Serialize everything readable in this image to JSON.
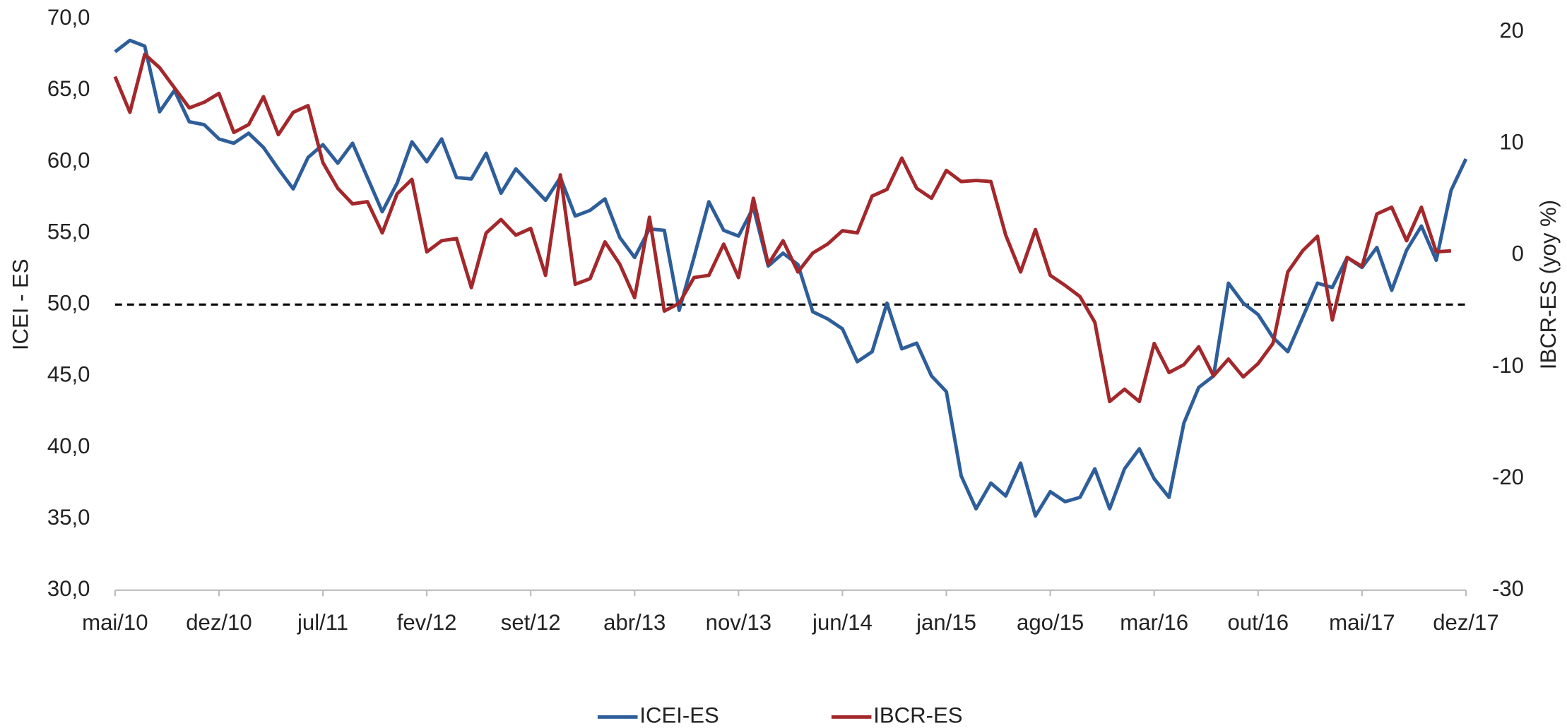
{
  "chart_data": {
    "type": "line",
    "categories": [
      "mai/10",
      null,
      null,
      null,
      null,
      null,
      null,
      "dez/10",
      null,
      null,
      null,
      null,
      null,
      null,
      "jul/11",
      null,
      null,
      null,
      null,
      null,
      null,
      "fev/12",
      null,
      null,
      null,
      null,
      null,
      null,
      "set/12",
      null,
      null,
      null,
      null,
      null,
      null,
      "abr/13",
      null,
      null,
      null,
      null,
      null,
      null,
      "nov/13",
      null,
      null,
      null,
      null,
      null,
      null,
      "jun/14",
      null,
      null,
      null,
      null,
      null,
      null,
      "jan/15",
      null,
      null,
      null,
      null,
      null,
      null,
      "ago/15",
      null,
      null,
      null,
      null,
      null,
      null,
      "mar/16",
      null,
      null,
      null,
      null,
      null,
      null,
      "out/16",
      null,
      null,
      null,
      null,
      null,
      null,
      "mai/17",
      null,
      null,
      null,
      null,
      null,
      null,
      "dez/17"
    ],
    "series": [
      {
        "name": "ICEI-ES",
        "color": "#2e5e9a",
        "values": [
          67.7,
          68.5,
          68.1,
          63.5,
          65,
          62.8,
          62.6,
          61.6,
          61.3,
          62,
          61,
          59.5,
          58.1,
          60.3,
          61.2,
          59.9,
          61.3,
          58.9,
          56.5,
          58.5,
          61.4,
          60,
          61.6,
          58.9,
          58.8,
          60.6,
          57.8,
          59.5,
          58.4,
          57.3,
          58.9,
          56.2,
          56.6,
          57.4,
          54.7,
          53.3,
          55.3,
          55.2,
          49.6,
          53.3,
          57.2,
          55.2,
          54.8,
          56.8,
          52.7,
          53.6,
          52.8,
          49.5,
          49,
          48.3,
          46,
          46.7,
          50.1,
          46.9,
          47.3,
          45,
          43.9,
          38,
          35.7,
          37.5,
          36.6,
          38.9,
          35.2,
          36.9,
          36.2,
          36.5,
          38.5,
          35.7,
          38.5,
          39.9,
          37.8,
          36.5,
          41.7,
          44.2,
          45,
          51.5,
          50.1,
          49.3,
          47.7,
          46.7,
          49.1,
          51.5,
          51.2,
          53.3,
          52.6,
          54,
          51,
          53.8,
          55.5,
          53.1,
          58,
          60.2
        ]
      },
      {
        "name": "IBCR-ES",
        "color": "#a3282c",
        "axis": "y2",
        "values": [
          16,
          12.8,
          18,
          16.8,
          15,
          13.2,
          13.7,
          14.5,
          11,
          11.7,
          14.2,
          10.8,
          12.8,
          13.4,
          8.3,
          6,
          4.6,
          4.8,
          2,
          5.5,
          6.8,
          0.3,
          1.3,
          1.5,
          -2.9,
          2,
          3.2,
          1.8,
          2.4,
          -1.8,
          7.2,
          -2.6,
          -2.1,
          1.2,
          -0.8,
          -3.8,
          3.4,
          -5,
          -4.3,
          -2,
          -1.8,
          1,
          -2,
          5.1,
          -0.8,
          1.3,
          -1.5,
          0.2,
          1,
          2.2,
          2,
          5.3,
          5.9,
          8.7,
          6,
          5.1,
          7.6,
          6.6,
          6.7,
          6.6,
          1.8,
          -1.5,
          2.3,
          -1.8,
          -2.7,
          -3.7,
          -6,
          -13.1,
          -12,
          -13.1,
          -7.9,
          -10.5,
          -9.8,
          -8.2,
          -10.8,
          -9.3,
          -10.9,
          -9.7,
          -7.9,
          -1.5,
          0.4,
          1.7,
          -5.8,
          -0.2,
          -1,
          3.7,
          4.3,
          1.3,
          4.3,
          0.3,
          0.4,
          null
        ]
      }
    ],
    "ylabel": "ICEI - ES",
    "y2label": "IBCR-ES (yoy %)",
    "ylim": [
      30,
      70
    ],
    "yticks": [
      {
        "value": 30,
        "label": "30,0"
      },
      {
        "value": 35,
        "label": "35,0"
      },
      {
        "value": 40,
        "label": "40,0"
      },
      {
        "value": 45,
        "label": "45,0"
      },
      {
        "value": 50,
        "label": "50,0"
      },
      {
        "value": 55,
        "label": "55,0"
      },
      {
        "value": 60,
        "label": "60,0"
      },
      {
        "value": 65,
        "label": "65,0"
      },
      {
        "value": 70,
        "label": "70,0"
      }
    ],
    "y2lim": [
      -30,
      20
    ],
    "y2ticks": [
      -30,
      -20,
      -10,
      0,
      10,
      20
    ],
    "reference_line": 50,
    "grid": false,
    "legend": "bottom"
  }
}
